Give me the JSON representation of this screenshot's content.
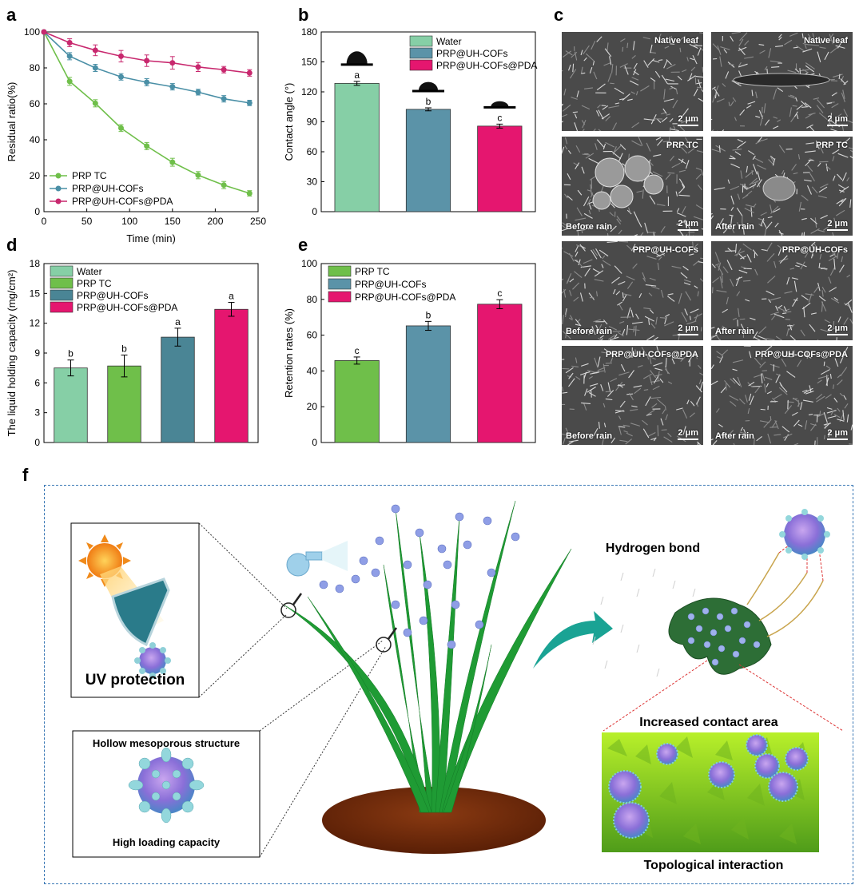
{
  "panels": {
    "a": "a",
    "b": "b",
    "c": "c",
    "d": "d",
    "e": "e",
    "f": "f"
  },
  "chart_data": [
    {
      "panel": "a",
      "type": "line",
      "xlabel": "Time (min)",
      "ylabel": "Residual ratio(%)",
      "xlim": [
        0,
        250
      ],
      "ylim": [
        0,
        100
      ],
      "xticks": [
        0,
        50,
        100,
        150,
        200,
        250
      ],
      "yticks": [
        0,
        20,
        40,
        60,
        80,
        100
      ],
      "legend_position": "bottom-left",
      "x": [
        0,
        30,
        60,
        90,
        120,
        150,
        180,
        210,
        240
      ],
      "series": [
        {
          "name": "PRP TC",
          "color": "#6fbf4a",
          "values": [
            100,
            72.5,
            60.3,
            46.5,
            36.5,
            27.5,
            20.3,
            14.8,
            10.2
          ],
          "errors": [
            0,
            2.2,
            2,
            1.9,
            2,
            2.2,
            2,
            2,
            1.5
          ]
        },
        {
          "name": "PRP@UH-COFs",
          "color": "#4a8fa6",
          "values": [
            100,
            86.5,
            80,
            75,
            72,
            69.5,
            66.5,
            62.8,
            60.5
          ],
          "errors": [
            0,
            2,
            2,
            1.8,
            2,
            1.8,
            1.6,
            1.8,
            1.5
          ]
        },
        {
          "name": "PRP@UH-COFs@PDA",
          "color": "#c8286e",
          "values": [
            100,
            94,
            89.8,
            86.5,
            84,
            82.8,
            80.5,
            79,
            77.2
          ],
          "errors": [
            0,
            2.2,
            3,
            3.2,
            3.2,
            3.5,
            2.5,
            1.8,
            1.8
          ]
        }
      ]
    },
    {
      "panel": "b",
      "type": "bar",
      "ylabel": "Contact angle (°)",
      "ylim": [
        0,
        180
      ],
      "yticks": [
        0,
        30,
        60,
        90,
        120,
        150,
        180
      ],
      "legend_position": "top-right",
      "categories": [
        "Water",
        "PRP@UH-COFs",
        "PRP@UH-COFs@PDA"
      ],
      "values": [
        128.5,
        102.5,
        85.7
      ],
      "errors": [
        2,
        1.5,
        2
      ],
      "letters": [
        "a",
        "b",
        "c"
      ],
      "colors": [
        "#86cfa6",
        "#5b93a8",
        "#e5166f"
      ]
    },
    {
      "panel": "d",
      "type": "bar",
      "ylabel": "The liquid holding capacity (mg/cm²)",
      "ylim": [
        0,
        18
      ],
      "yticks": [
        0,
        3,
        6,
        9,
        12,
        15,
        18
      ],
      "legend_position": "top-left",
      "categories": [
        "Water",
        "PRP TC",
        "PRP@UH-COFs",
        "PRP@UH-COFs@PDA"
      ],
      "values": [
        7.5,
        7.7,
        10.6,
        13.4
      ],
      "errors": [
        0.8,
        1.1,
        0.9,
        0.7
      ],
      "letters": [
        "b",
        "b",
        "a",
        "a"
      ],
      "colors": [
        "#86cfa6",
        "#6fbf4a",
        "#4a8595",
        "#e5166f"
      ]
    },
    {
      "panel": "e",
      "type": "bar",
      "ylabel": "Retention rates (%)",
      "ylim": [
        0,
        100
      ],
      "yticks": [
        0,
        20,
        40,
        60,
        80,
        100
      ],
      "legend_position": "top-left",
      "categories": [
        "PRP TC",
        "PRP@UH-COFs",
        "PRP@UH-COFs@PDA"
      ],
      "values": [
        45.8,
        65.2,
        77.3
      ],
      "errors": [
        2,
        2.5,
        2.5
      ],
      "letters": [
        "c",
        "b",
        "c"
      ],
      "colors": [
        "#6fbf4a",
        "#5b93a8",
        "#e5166f"
      ]
    }
  ],
  "sem": {
    "scale": "2 μm",
    "cells": [
      {
        "label": "Native leaf"
      },
      {
        "label": "Native leaf"
      },
      {
        "label": "PRP TC",
        "state": "Before rain"
      },
      {
        "label": "PRP TC",
        "state": "After rain"
      },
      {
        "label": "PRP@UH-COFs",
        "state": "Before rain"
      },
      {
        "label": "PRP@UH-COFs",
        "state": "After rain"
      },
      {
        "label": "PRP@UH-COFs@PDA",
        "state": "Before rain"
      },
      {
        "label": "PRP@UH-COFs@PDA",
        "state": "After rain"
      }
    ]
  },
  "scheme": {
    "uv_protection": "UV protection",
    "hollow": "Hollow mesoporous structure",
    "loading": "High loading capacity",
    "hydrogen_bond": "Hydrogen bond",
    "contact_area": "Increased contact area",
    "topological": "Topological interaction"
  }
}
